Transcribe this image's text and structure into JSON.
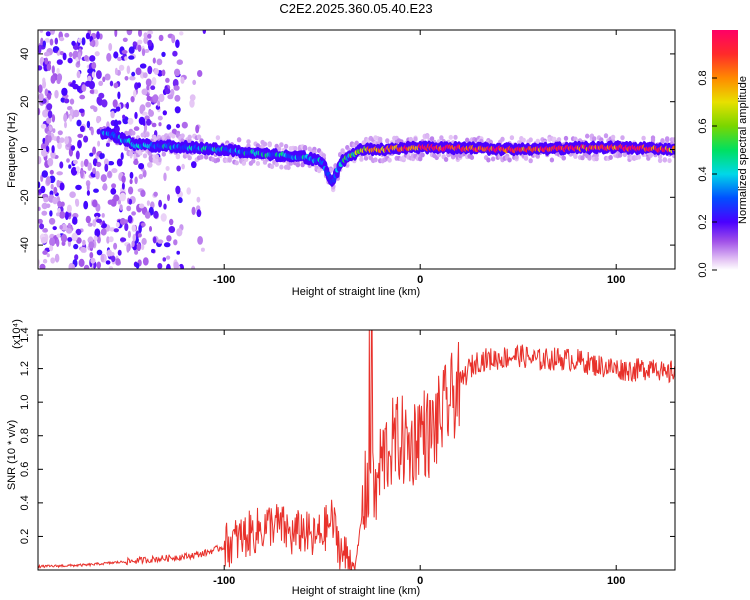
{
  "title": "C2E2.2025.360.05.40.E23",
  "chart_data": [
    {
      "type": "heatmap",
      "title": "C2E2.2025.360.05.40.E23",
      "xlabel": "Height of straight line (km)",
      "ylabel": "Frequency (Hz)",
      "xlim": [
        -195,
        130
      ],
      "ylim": [
        -50,
        50
      ],
      "x_ticks": [
        "-100",
        "0",
        "100"
      ],
      "x_tick_values": [
        -100,
        0,
        100
      ],
      "y_ticks": [
        "-40",
        "-20",
        "0",
        "20",
        "40"
      ],
      "y_tick_values": [
        -40,
        -20,
        0,
        20,
        40
      ],
      "colorbar": {
        "label": "Normalized spectral amplitude",
        "range": [
          0,
          1
        ],
        "ticks": [
          "0.0",
          "0.2",
          "0.4",
          "0.6",
          "0.8"
        ],
        "tick_values": [
          0.0,
          0.2,
          0.4,
          0.6,
          0.8
        ]
      },
      "ridge": {
        "description_x": [
          -160,
          -145,
          -120,
          -100,
          -80,
          -60,
          -50,
          -45,
          -40,
          -30,
          -20,
          0,
          50,
          100,
          130
        ],
        "frequency": [
          7,
          2,
          1,
          0,
          -2,
          -3,
          -5,
          -14,
          -5,
          0,
          0,
          1,
          0,
          1,
          0
        ],
        "amplitude": [
          0.25,
          0.3,
          0.35,
          0.35,
          0.35,
          0.3,
          0.3,
          0.25,
          0.3,
          0.7,
          0.85,
          0.9,
          0.9,
          0.9,
          0.85
        ]
      }
    },
    {
      "type": "line",
      "xlabel": "Height of straight line (km)",
      "ylabel": "SNR (10 * v/v)",
      "y_scale_label": "(x10⁴)",
      "xlim": [
        -195,
        130
      ],
      "ylim": [
        0,
        1.43
      ],
      "x_ticks": [
        "-100",
        "0",
        "100"
      ],
      "x_tick_values": [
        -100,
        0,
        100
      ],
      "y_ticks": [
        "0.2",
        "0.4",
        "0.6",
        "0.8",
        "1.0",
        "1.2",
        "1.4"
      ],
      "y_tick_values": [
        0.2,
        0.4,
        0.6,
        0.8,
        1.0,
        1.2,
        1.4
      ],
      "series": [
        {
          "name": "SNR",
          "color": "#e8312b",
          "x": [
            -195,
            -170,
            -150,
            -140,
            -120,
            -110,
            -100,
            -90,
            -80,
            -75,
            -70,
            -65,
            -60,
            -55,
            -50,
            -45,
            -40,
            -35,
            -33,
            -30,
            -28,
            -26,
            -25,
            -23,
            -20,
            -15,
            -10,
            -5,
            0,
            5,
            10,
            15,
            20,
            25,
            30,
            40,
            50,
            60,
            70,
            80,
            90,
            100,
            110,
            115,
            120,
            125,
            130
          ],
          "y": [
            0.02,
            0.03,
            0.05,
            0.06,
            0.08,
            0.1,
            0.14,
            0.2,
            0.25,
            0.28,
            0.25,
            0.2,
            0.24,
            0.18,
            0.22,
            0.3,
            0.1,
            0.05,
            0.02,
            0.3,
            0.45,
            0.55,
            0.75,
            0.4,
            0.65,
            0.75,
            0.78,
            0.72,
            0.85,
            0.8,
            0.9,
            1.0,
            1.1,
            1.2,
            1.25,
            1.26,
            1.28,
            1.25,
            1.26,
            1.25,
            1.22,
            1.2,
            1.19,
            1.2,
            1.23,
            1.15,
            1.2
          ]
        }
      ]
    }
  ]
}
